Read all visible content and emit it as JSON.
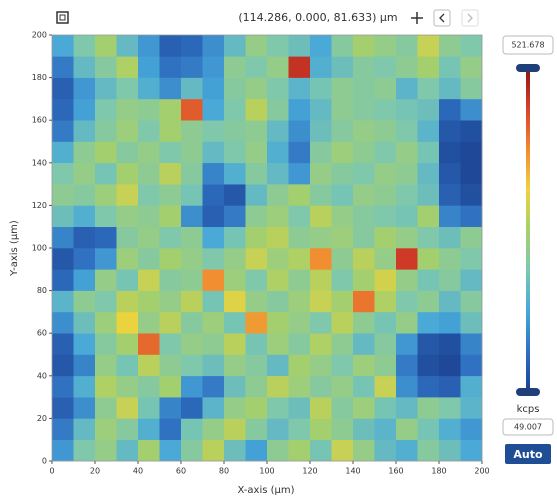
{
  "toolbar": {
    "coordinates": "(114.286, 0.000, 81.633) µm"
  },
  "chart_data": {
    "type": "heatmap",
    "x_label": "X-axis (µm)",
    "y_label": "Y-axis (µm)",
    "xlim": [
      0,
      200
    ],
    "ylim": [
      0,
      200
    ],
    "xticks": [
      0,
      20,
      40,
      60,
      80,
      100,
      120,
      140,
      160,
      180,
      200
    ],
    "yticks": [
      0,
      20,
      40,
      60,
      80,
      100,
      120,
      140,
      160,
      180,
      200
    ],
    "clim": [
      49.007,
      521.678
    ],
    "colorbar_unit": "kcps",
    "colormap": [
      "#1b3f8f",
      "#2f6fc0",
      "#47a8d8",
      "#7cc7b0",
      "#a8d068",
      "#f0d23c",
      "#f08a30",
      "#d8402a",
      "#8e1414"
    ],
    "z": [
      [
        150,
        230,
        260,
        200,
        280,
        170,
        240,
        300,
        210,
        160,
        250,
        280,
        220,
        310,
        260,
        200,
        180,
        240,
        210,
        170
      ],
      [
        120,
        200,
        270,
        240,
        180,
        110,
        220,
        260,
        300,
        240,
        200,
        230,
        280,
        250,
        210,
        190,
        260,
        220,
        180,
        150
      ],
      [
        90,
        140,
        250,
        310,
        220,
        130,
        100,
        190,
        260,
        280,
        230,
        210,
        300,
        240,
        270,
        220,
        200,
        250,
        230,
        190
      ],
      [
        110,
        180,
        290,
        260,
        240,
        280,
        150,
        120,
        210,
        250,
        300,
        270,
        240,
        260,
        220,
        310,
        140,
        100,
        90,
        180
      ],
      [
        80,
        130,
        260,
        220,
        300,
        250,
        230,
        210,
        260,
        240,
        200,
        280,
        260,
        230,
        270,
        250,
        120,
        70,
        60,
        110
      ],
      [
        90,
        170,
        240,
        280,
        430,
        230,
        260,
        250,
        300,
        220,
        270,
        240,
        290,
        250,
        200,
        240,
        150,
        80,
        70,
        130
      ],
      [
        140,
        210,
        270,
        340,
        260,
        300,
        240,
        270,
        220,
        390,
        280,
        260,
        230,
        300,
        250,
        220,
        260,
        170,
        160,
        210
      ],
      [
        190,
        250,
        230,
        300,
        280,
        260,
        300,
        220,
        330,
        260,
        240,
        270,
        310,
        280,
        420,
        290,
        230,
        250,
        200,
        240
      ],
      [
        100,
        160,
        260,
        220,
        310,
        240,
        250,
        400,
        270,
        230,
        290,
        250,
        300,
        230,
        280,
        320,
        260,
        220,
        240,
        200
      ],
      [
        80,
        110,
        150,
        270,
        240,
        280,
        260,
        230,
        260,
        310,
        270,
        290,
        400,
        250,
        300,
        260,
        470,
        280,
        250,
        230
      ],
      [
        130,
        90,
        100,
        240,
        260,
        230,
        250,
        170,
        220,
        280,
        300,
        250,
        260,
        270,
        240,
        280,
        260,
        230,
        210,
        250
      ],
      [
        210,
        180,
        230,
        260,
        250,
        280,
        140,
        90,
        120,
        250,
        270,
        230,
        300,
        260,
        240,
        230,
        220,
        280,
        130,
        110
      ],
      [
        250,
        240,
        270,
        310,
        230,
        250,
        220,
        100,
        80,
        200,
        250,
        280,
        240,
        220,
        260,
        250,
        230,
        210,
        90,
        70
      ],
      [
        230,
        260,
        220,
        280,
        250,
        300,
        240,
        130,
        180,
        240,
        200,
        150,
        260,
        240,
        230,
        260,
        250,
        200,
        80,
        60
      ],
      [
        180,
        250,
        280,
        240,
        260,
        230,
        250,
        200,
        230,
        260,
        180,
        120,
        240,
        270,
        250,
        230,
        260,
        220,
        70,
        60
      ],
      [
        120,
        200,
        240,
        270,
        230,
        280,
        250,
        230,
        240,
        250,
        200,
        140,
        210,
        240,
        260,
        250,
        230,
        190,
        80,
        70
      ],
      [
        100,
        160,
        230,
        260,
        250,
        280,
        440,
        170,
        230,
        300,
        240,
        160,
        200,
        250,
        240,
        230,
        220,
        210,
        100,
        140
      ],
      [
        90,
        150,
        200,
        230,
        180,
        140,
        200,
        160,
        240,
        260,
        230,
        190,
        220,
        250,
        240,
        250,
        190,
        230,
        200,
        240
      ],
      [
        120,
        200,
        240,
        290,
        160,
        110,
        120,
        150,
        250,
        230,
        260,
        480,
        180,
        210,
        240,
        230,
        250,
        280,
        220,
        260
      ],
      [
        170,
        230,
        280,
        200,
        150,
        90,
        100,
        140,
        200,
        260,
        230,
        210,
        170,
        240,
        280,
        260,
        240,
        310,
        250,
        230
      ]
    ]
  },
  "auto_button": "Auto"
}
